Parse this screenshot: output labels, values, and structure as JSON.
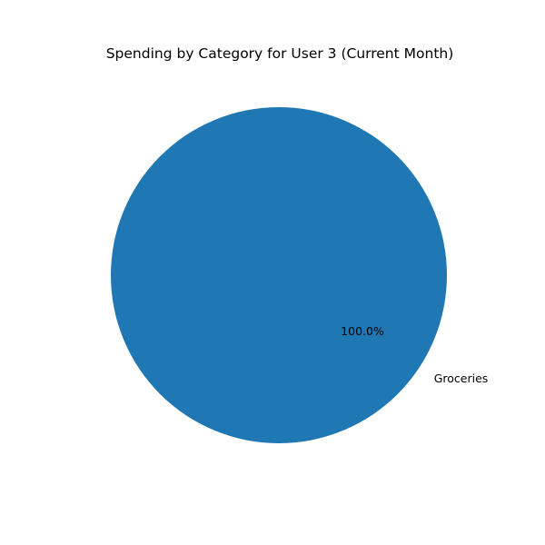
{
  "chart_data": {
    "type": "pie",
    "title": "Spending by Category for User 3 (Current Month)",
    "categories": [
      "Groceries"
    ],
    "values": [
      100.0
    ],
    "percent_labels": [
      "100.0%"
    ],
    "colors": [
      "#1f77b4"
    ],
    "legend": "none"
  }
}
